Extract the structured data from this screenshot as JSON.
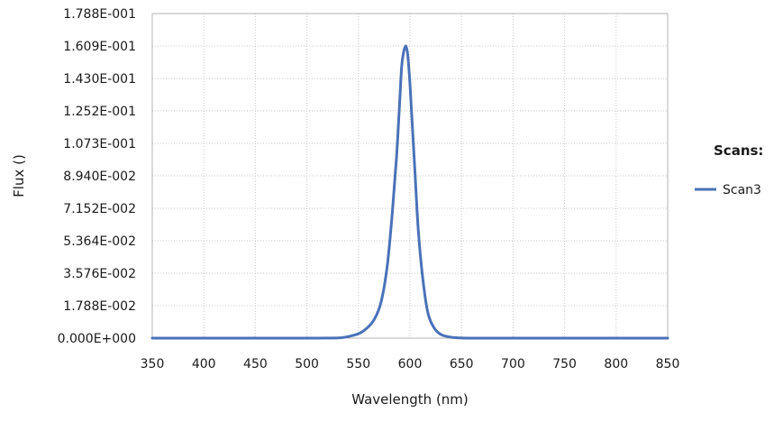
{
  "chart_data": {
    "type": "line",
    "title": "",
    "xlabel": "Wavelength (nm)",
    "ylabel": "Flux ()",
    "xlim": [
      350,
      850
    ],
    "ylim": [
      0,
      0.1788
    ],
    "x_ticks": [
      350,
      400,
      450,
      500,
      550,
      600,
      650,
      700,
      750,
      800,
      850
    ],
    "x_tick_labels": [
      "350",
      "400",
      "450",
      "500",
      "550",
      "600",
      "650",
      "700",
      "750",
      "800",
      "850"
    ],
    "y_ticks": [
      0,
      0.01788,
      0.03576,
      0.05364,
      0.07152,
      0.0894,
      0.1073,
      0.1252,
      0.143,
      0.1609,
      0.1788
    ],
    "y_tick_labels": [
      "0.000E+000",
      "1.788E-002",
      "3.576E-002",
      "5.364E-002",
      "7.152E-002",
      "8.940E-002",
      "1.073E-001",
      "1.252E-001",
      "1.430E-001",
      "1.609E-001",
      "1.788E-001"
    ],
    "grid": true,
    "legend": {
      "title": "Scans:",
      "position": "right"
    },
    "series": [
      {
        "name": "Scan3",
        "color": "#4a72b8",
        "x": [
          350,
          400,
          450,
          500,
          530,
          545,
          555,
          565,
          572,
          578,
          583,
          587,
          590,
          592,
          594,
          595,
          596,
          597,
          598,
          600,
          602,
          605,
          608,
          612,
          617,
          623,
          630,
          640,
          655,
          680,
          750,
          850
        ],
        "y": [
          0,
          0,
          0,
          0,
          0.0001,
          0.0015,
          0.004,
          0.01,
          0.02,
          0.04,
          0.07,
          0.1,
          0.13,
          0.15,
          0.158,
          0.16,
          0.1609,
          0.159,
          0.155,
          0.14,
          0.12,
          0.09,
          0.06,
          0.035,
          0.015,
          0.006,
          0.002,
          0.0005,
          0,
          0,
          0,
          0
        ]
      }
    ]
  }
}
